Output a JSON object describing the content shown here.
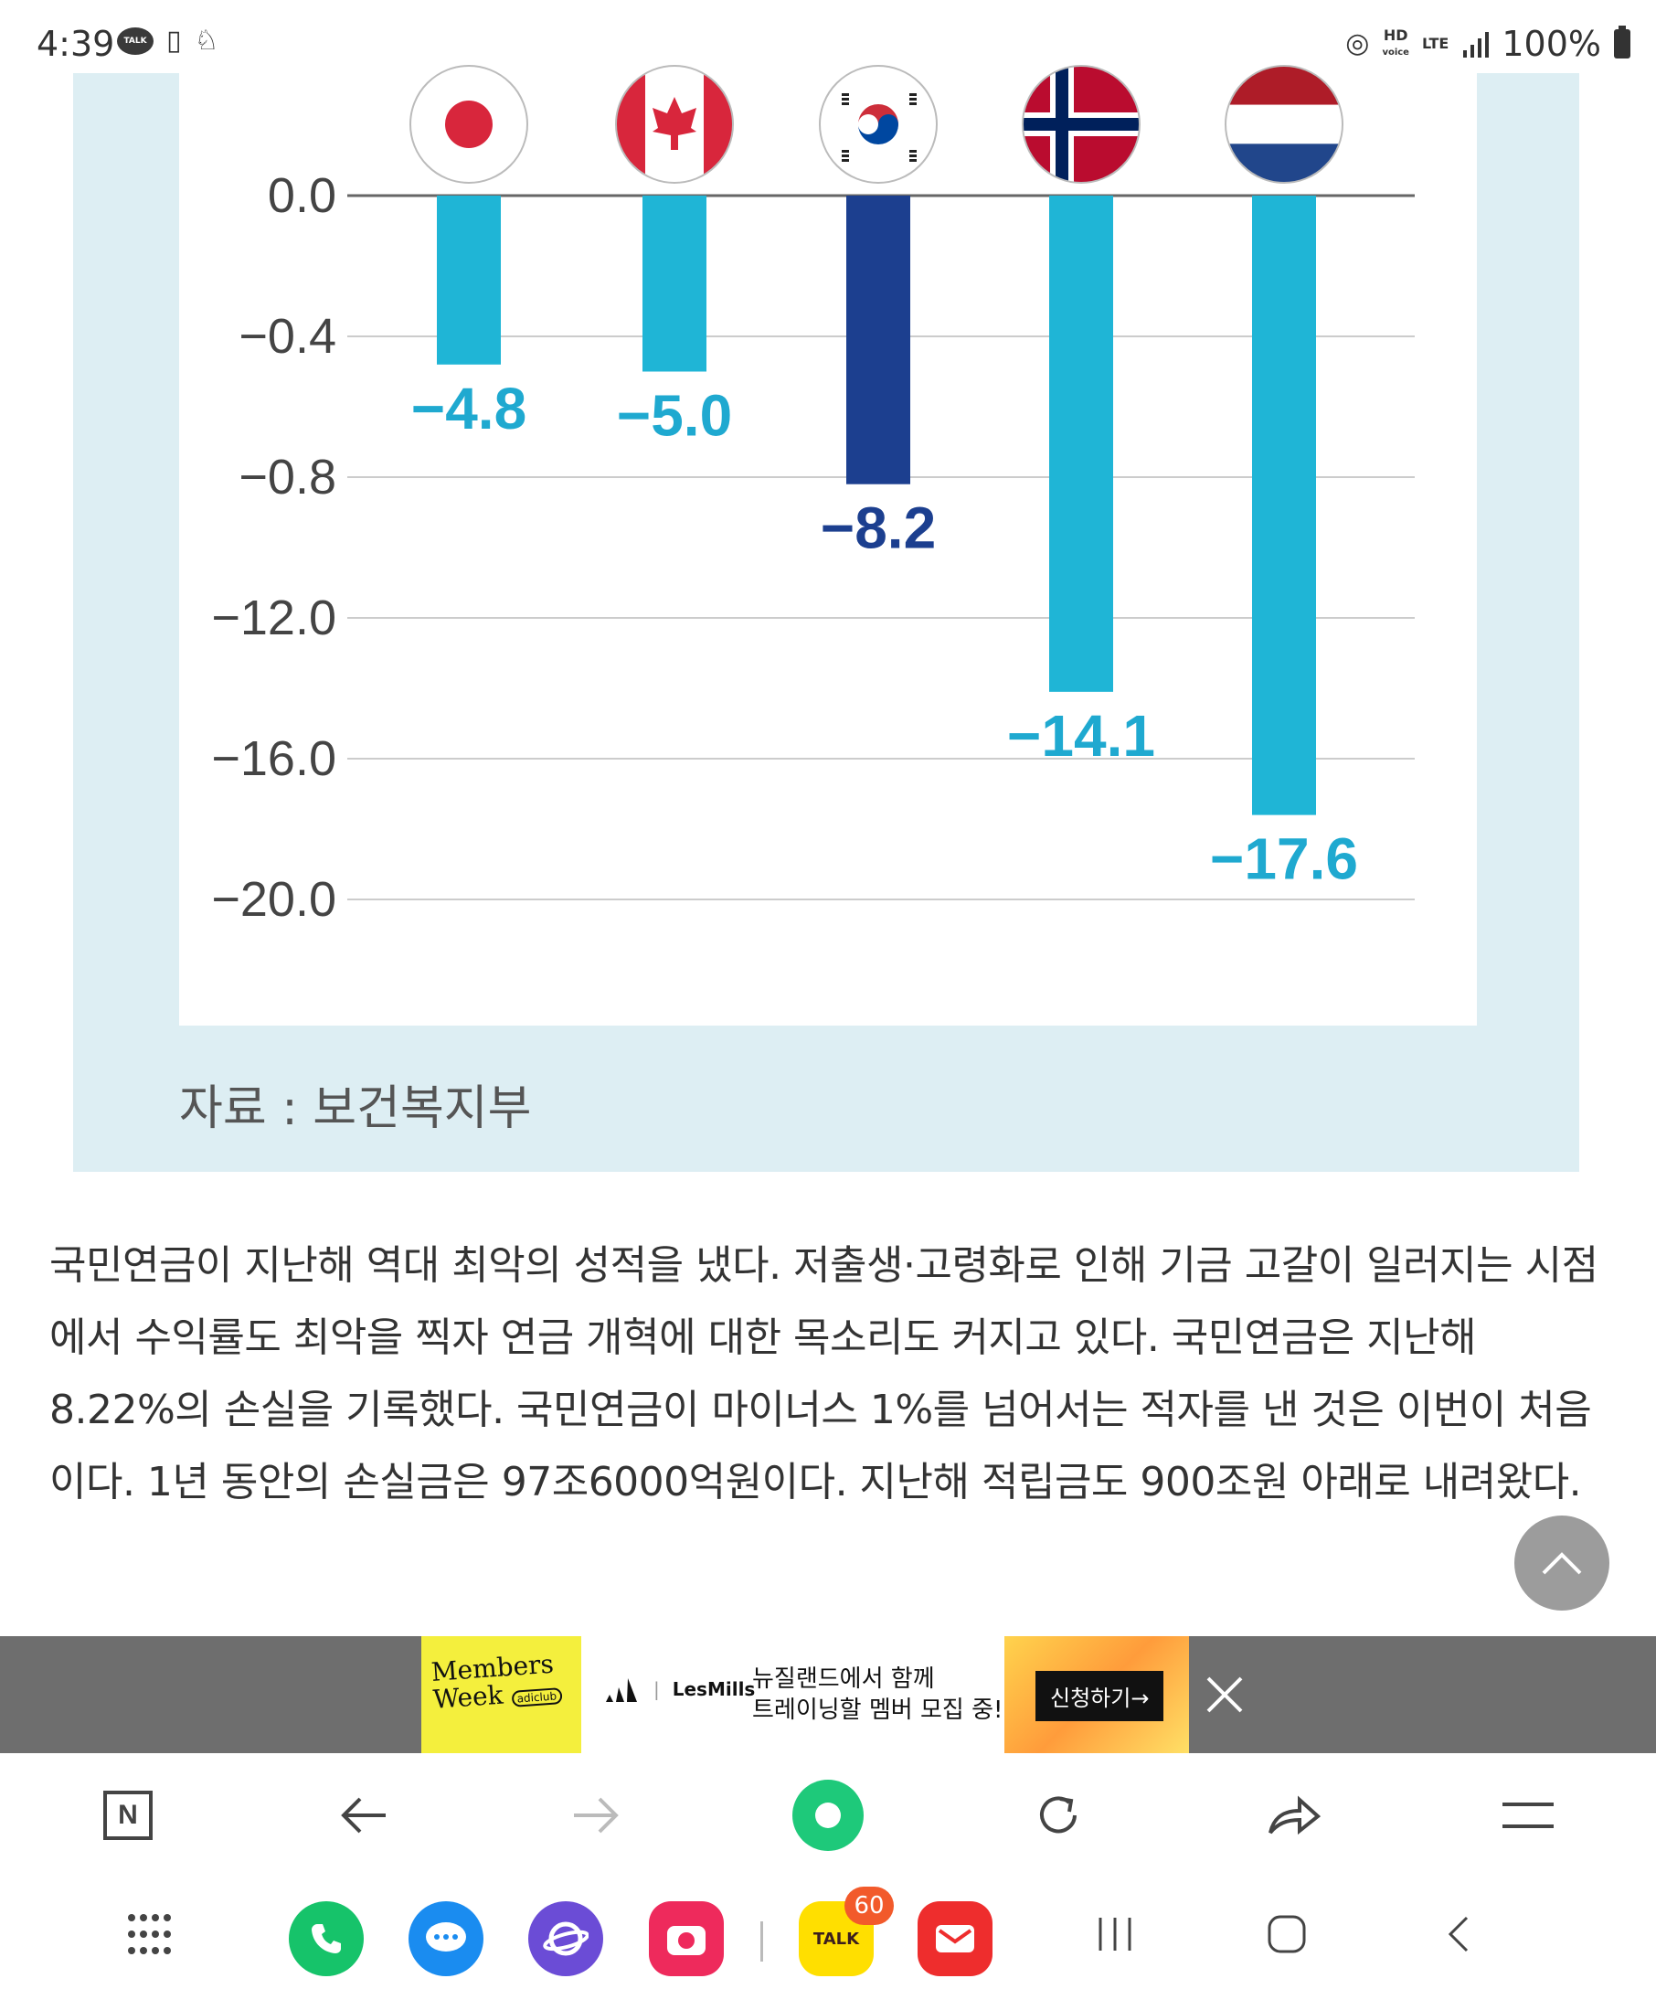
{
  "status_bar": {
    "time": "4:39",
    "talk_label": "TALK",
    "hd_label": "HD",
    "voice_label": "voice",
    "lte_label": "LTE",
    "battery": "100%"
  },
  "chart_data": {
    "type": "bar",
    "categories": [
      "Japan",
      "Canada",
      "South Korea",
      "Norway",
      "Netherlands"
    ],
    "values": [
      -4.8,
      -5.0,
      -8.2,
      -14.1,
      -17.6
    ],
    "value_labels": [
      "−4.8",
      "−5.0",
      "−8.2",
      "−14.1",
      "−17.6"
    ],
    "y_tick_labels": [
      "0.0",
      "−0.4",
      "−0.8",
      "−12.0",
      "−16.0",
      "−20.0"
    ],
    "highlight_index": 2,
    "colors": {
      "bar": "#1fb5d6",
      "highlight": "#1c3f8f",
      "label": "#1fa9d0",
      "highlight_label": "#1c3f8f",
      "grid": "#cccccc"
    },
    "flags": [
      "japan-flag-icon",
      "canada-flag-icon",
      "korea-flag-icon",
      "norway-flag-icon",
      "netherlands-flag-icon"
    ],
    "source": "자료 : 보건복지부"
  },
  "article": {
    "paragraph": "국민연금이 지난해 역대 최악의 성적을 냈다. 저출생·고령화로 인해 기금 고갈이 일러지는 시점에서 수익률도 최악을 찍자 연금 개혁에 대한 목소리도 커지고 있다. 국민연금은 지난해 8.22%의 손실을 기록했다. 국민연금이 마이너스 1%를 넘어서는 적자를 낸 것은 이번이 처음이다. 1년 동안의 손실금은 97조6000억원이다. 지난해 적립금도 900조원 아래로 내려왔다."
  },
  "ad": {
    "members_line1": "Members",
    "members_line2": "Week",
    "adiclub": "adiclub",
    "brand": "LesMills",
    "text_line1": "뉴질랜드에서 함께",
    "text_line2": "트레이닝할 멤버 모집 중!",
    "cta": "신청하기→"
  },
  "toolbar": {
    "n_label": "N"
  },
  "navbar": {
    "kakao_label": "TALK",
    "kakao_badge": "60"
  }
}
